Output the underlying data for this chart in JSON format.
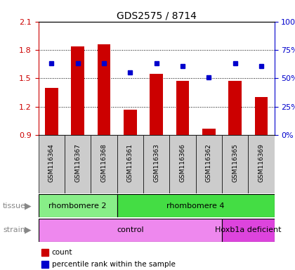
{
  "title": "GDS2575 / 8714",
  "samples": [
    "GSM116364",
    "GSM116367",
    "GSM116368",
    "GSM116361",
    "GSM116363",
    "GSM116366",
    "GSM116362",
    "GSM116365",
    "GSM116369"
  ],
  "bar_values": [
    1.4,
    1.84,
    1.86,
    1.17,
    1.55,
    1.47,
    0.97,
    1.47,
    1.3
  ],
  "dot_values_percent": [
    63,
    63,
    63,
    55,
    63,
    61,
    51,
    63,
    61
  ],
  "ylim_left": [
    0.9,
    2.1
  ],
  "ylim_right": [
    0,
    100
  ],
  "yticks_left": [
    0.9,
    1.2,
    1.5,
    1.8,
    2.1
  ],
  "yticks_right": [
    0,
    25,
    50,
    75,
    100
  ],
  "ytick_labels_right": [
    "0%",
    "25%",
    "50%",
    "75%",
    "100%"
  ],
  "bar_color": "#cc0000",
  "dot_color": "#0000cc",
  "bar_width": 0.5,
  "tissue_groups": [
    {
      "label": "rhombomere 2",
      "start": 0,
      "end": 3,
      "color": "#88ee88"
    },
    {
      "label": "rhombomere 4",
      "start": 3,
      "end": 9,
      "color": "#44dd44"
    }
  ],
  "strain_groups": [
    {
      "label": "control",
      "start": 0,
      "end": 7,
      "color": "#ee88ee"
    },
    {
      "label": "Hoxb1a deficient",
      "start": 7,
      "end": 9,
      "color": "#dd44dd"
    }
  ],
  "legend_items": [
    {
      "label": "count",
      "color": "#cc0000"
    },
    {
      "label": "percentile rank within the sample",
      "color": "#0000cc"
    }
  ],
  "left_axis_color": "#cc0000",
  "right_axis_color": "#0000cc",
  "tissue_label": "tissue",
  "strain_label": "strain",
  "xticklabel_bg": "#cccccc"
}
